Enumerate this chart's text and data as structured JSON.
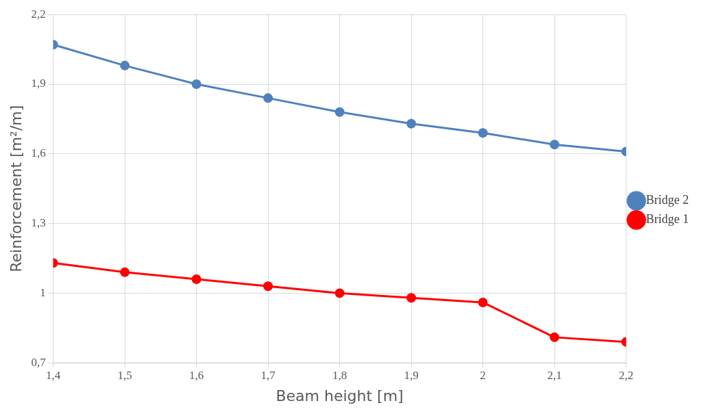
{
  "chart_data": {
    "type": "line",
    "xlabel": "Beam height [m]",
    "ylabel": "Reinforcement [m²/m]",
    "x": [
      1.4,
      1.5,
      1.6,
      1.7,
      1.8,
      1.9,
      2.0,
      2.1,
      2.2
    ],
    "series": [
      {
        "name": "Bridge 2",
        "color": "#4f81bd",
        "values": [
          2.07,
          1.98,
          1.9,
          1.84,
          1.78,
          1.73,
          1.69,
          1.64,
          1.61
        ]
      },
      {
        "name": "Bridge 1",
        "color": "#ff0000",
        "values": [
          1.13,
          1.09,
          1.06,
          1.03,
          1.0,
          0.98,
          0.96,
          0.81,
          0.79
        ]
      }
    ],
    "xlim": [
      1.4,
      2.2
    ],
    "xticks": [
      {
        "value": 1.4,
        "label": "1,4"
      },
      {
        "value": 1.5,
        "label": "1,5"
      },
      {
        "value": 1.6,
        "label": "1,6"
      },
      {
        "value": 1.7,
        "label": "1,7"
      },
      {
        "value": 1.8,
        "label": "1,8"
      },
      {
        "value": 1.9,
        "label": "1,9"
      },
      {
        "value": 2.0,
        "label": "2"
      },
      {
        "value": 2.1,
        "label": "2,1"
      },
      {
        "value": 2.2,
        "label": "2,2"
      }
    ],
    "ylim": [
      0.7,
      2.2
    ],
    "yticks": [
      {
        "value": 0.7,
        "label": "0,7"
      },
      {
        "value": 1.0,
        "label": "1"
      },
      {
        "value": 1.3,
        "label": "1,3"
      },
      {
        "value": 1.6,
        "label": "1,6"
      },
      {
        "value": 1.9,
        "label": "1,9"
      },
      {
        "value": 2.2,
        "label": "2,2"
      }
    ],
    "grid": true,
    "legend": "right",
    "marker": "circle",
    "line_style": "solid"
  }
}
